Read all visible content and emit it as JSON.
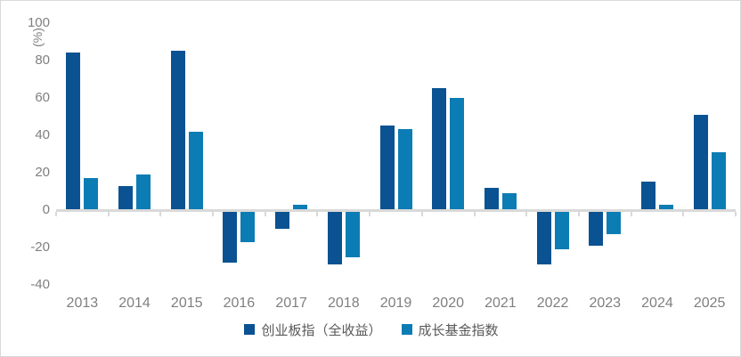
{
  "chart_data": {
    "type": "bar",
    "title": "",
    "unit_label": "(%)",
    "xlabel": "",
    "ylabel": "(%)",
    "categories": [
      "2013",
      "2014",
      "2015",
      "2016",
      "2017",
      "2018",
      "2019",
      "2020",
      "2021",
      "2022",
      "2023",
      "2024",
      "2025"
    ],
    "series": [
      {
        "name": "创业板指（全收益）",
        "color": "#0A5291",
        "values": [
          84,
          13,
          85,
          -28,
          -10,
          -29,
          45,
          65,
          12,
          -29,
          -19,
          15,
          51
        ]
      },
      {
        "name": "成长基金指数",
        "color": "#0C7CB5",
        "values": [
          17,
          19,
          42,
          -17,
          3,
          -25,
          43,
          60,
          9,
          -21,
          -13,
          3,
          31
        ]
      }
    ],
    "y_ticks": [
      100,
      80,
      60,
      40,
      20,
      0,
      -20,
      -40
    ],
    "ylim": [
      -40,
      100
    ],
    "grid": false,
    "legend_position": "bottom",
    "axis_color": "#d9d9d9",
    "tick_label_color": "#7f7f7f",
    "legend_text_color": "#595959"
  }
}
